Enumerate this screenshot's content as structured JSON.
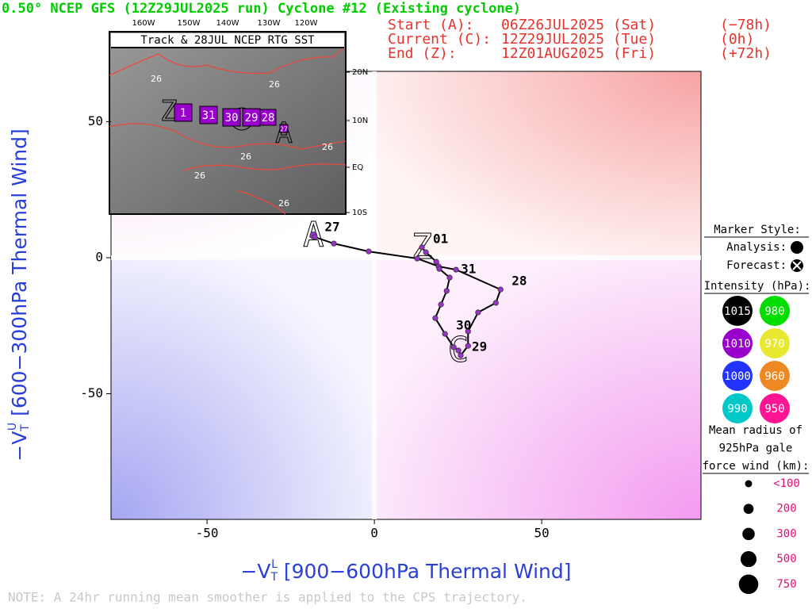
{
  "chart_data": {
    "type": "line",
    "title": "0.50° NCEP GFS (12Z29JUL2025 run) Cyclone #12 (Existing cyclone)",
    "times": [
      [
        "Start (A):",
        "06Z26JUL2025 (Sat)",
        "(−78h)"
      ],
      [
        "Current (C):",
        "12Z29JUL2025 (Tue)",
        "(0h)"
      ],
      [
        "End (Z):",
        "12Z01AUG2025 (Fri)",
        "(+72h)"
      ]
    ],
    "xlabel": {
      "main": "−V",
      "sub": "T",
      "sup": "L",
      "rest": " [900−600hPa Thermal Wind]"
    },
    "ylabel": {
      "main": "−V",
      "sub": "T",
      "sup": "U",
      "rest": " [600−300hPa Thermal Wind]"
    },
    "note": "NOTE:  A 24hr running mean smoother is applied to the CPS trajectory.",
    "x": [
      -18.2,
      -17.8,
      -12.1,
      -1.7,
      12.8,
      19.2,
      24.4,
      37.7,
      36.3,
      31.0,
      28.0,
      28.0,
      25.8,
      25.1,
      23.7,
      21.1,
      18.2,
      19.9,
      21.6,
      22.5,
      19.4,
      18.5,
      15.4,
      14.2
    ],
    "values": [
      8.2,
      7.6,
      5.2,
      2.3,
      -0.3,
      -3.2,
      -4.4,
      -11.7,
      -16.6,
      -20.1,
      -27.1,
      -32.4,
      -35.9,
      -34.1,
      -32.9,
      -28.0,
      -22.2,
      -17.2,
      -12.2,
      -7.3,
      -4.1,
      -1.5,
      2.0,
      3.8
    ],
    "point_labels": [
      "27",
      null,
      null,
      null,
      null,
      null,
      null,
      "28",
      null,
      null,
      null,
      null,
      "29",
      null,
      null,
      "30",
      null,
      null,
      null,
      "31",
      null,
      null,
      null,
      "01"
    ],
    "phase_letters": [
      "A",
      null,
      null,
      null,
      null,
      null,
      null,
      null,
      null,
      null,
      null,
      null,
      null,
      "C",
      null,
      null,
      null,
      null,
      null,
      null,
      null,
      null,
      null,
      "Z"
    ],
    "color": "#000000",
    "marker_color": "#9933cc",
    "xlim": [
      -78.7,
      97.6
    ],
    "ylim": [
      -96.2,
      68.5
    ],
    "xticks": [
      -50,
      0,
      50
    ],
    "yticks": [
      -50,
      0,
      50
    ],
    "legend": {
      "marker_title": "Marker Style:",
      "analysis": "Analysis:",
      "forecast": "Forecast:",
      "intensity_title": "Intensity (hPa):",
      "intensity": [
        {
          "value": 1015,
          "color": "#000000"
        },
        {
          "value": 980,
          "color": "#00dd00"
        },
        {
          "value": 1010,
          "color": "#9900cc"
        },
        {
          "value": 970,
          "color": "#e8e830"
        },
        {
          "value": 1000,
          "color": "#2233ff"
        },
        {
          "value": 960,
          "color": "#ee8822"
        },
        {
          "value": 990,
          "color": "#00c8c8"
        },
        {
          "value": 950,
          "color": "#ff1493"
        }
      ],
      "size_title": [
        "Mean radius of",
        "925hPa gale",
        "force wind (km):"
      ],
      "sizes": [
        {
          "value": 100,
          "label": "<100"
        },
        200,
        300,
        500,
        750
      ]
    }
  },
  "inset": {
    "title": "Track & 28JUL NCEP RTG SST",
    "lon_labels": [
      "160W",
      "150W",
      "140W",
      "130W",
      "120W"
    ],
    "lat_labels": [
      "20N",
      "10N",
      "EQ",
      "10S"
    ],
    "contour_labels": [
      "26",
      "26",
      "26",
      "26",
      "26",
      "26"
    ],
    "track_labels": [
      "1",
      "31",
      "30",
      "29",
      "28",
      "27"
    ],
    "letters": [
      "Z",
      "A"
    ]
  }
}
